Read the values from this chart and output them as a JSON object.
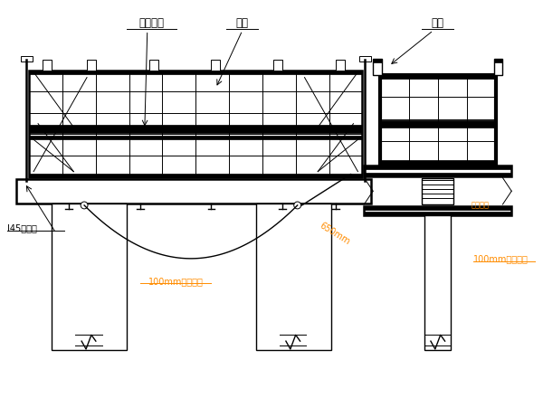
{
  "bg_color": "#ffffff",
  "line_color": "#000000",
  "text_color": "#000000",
  "orange_color": "#FF8C00",
  "light_blue_color": "#6495ED",
  "label_xinggang_beifang": "型钢背枋",
  "label_gangmo": "钢模",
  "label_lagan": "拉杆",
  "label_i45": "I45承重梁",
  "label_100mm_left": "100mm圆钢扁担",
  "label_100mm_right": "100mm圆钢扁担",
  "label_650mm": "650mm",
  "label_duijia_luoshuai": "对拉螺栓",
  "figsize": [
    6.0,
    4.5
  ],
  "dpi": 100
}
